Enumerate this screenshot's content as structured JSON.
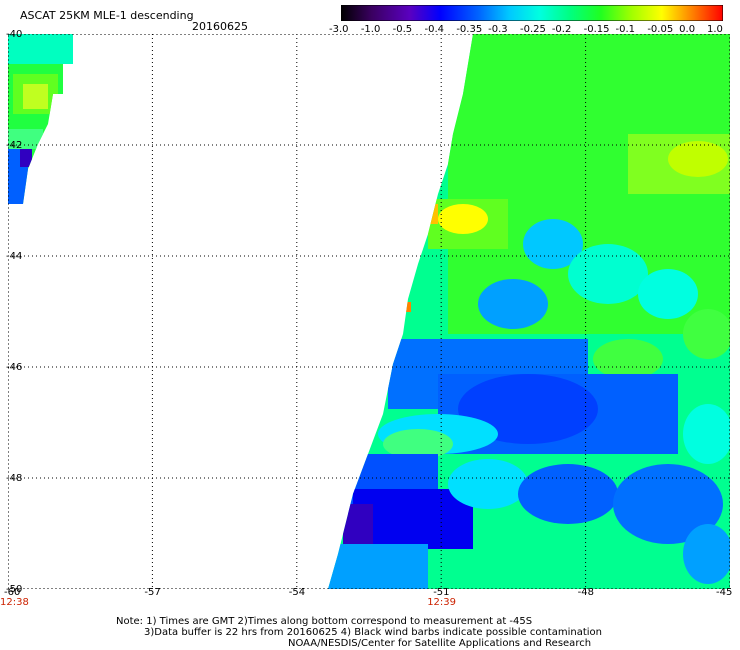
{
  "header": {
    "title": "ASCAT 25KM MLE-1 descending",
    "date": "20160625"
  },
  "colorbar": {
    "ticks": [
      "-3.0",
      "-1.0",
      "-0.5",
      "-0.4",
      "-0.35",
      "-0.3",
      "-0.25",
      "-0.2",
      "-0.15",
      "-0.1",
      "-0.05",
      "0.0",
      "1.0"
    ],
    "colors": [
      "#000000",
      "#3a0060",
      "#5a00c0",
      "#0000ff",
      "#0064ff",
      "#00c8ff",
      "#00ffe0",
      "#00ff80",
      "#20ff20",
      "#a0ff00",
      "#ffff00",
      "#ff8000",
      "#ff0000"
    ]
  },
  "axes": {
    "lat_labels": [
      "-40",
      "-42",
      "-44",
      "-46",
      "-48",
      "-50"
    ],
    "lon_labels": [
      "-60",
      "-57",
      "-54",
      "-51",
      "-48",
      "-45"
    ],
    "time_labels": [
      {
        "text": "12:38",
        "lon": -60
      },
      {
        "text": "12:39",
        "lon": -51
      }
    ]
  },
  "notes": {
    "line1": "Note: 1) Times are GMT 2)Times along bottom correspond to measurement at -45S",
    "line2": "3)Data buffer is 22 hrs from 20160625 4) Black wind barbs indicate possible contamination",
    "line3": "NOAA/NESDIS/Center for Satellite Applications and Research"
  }
}
